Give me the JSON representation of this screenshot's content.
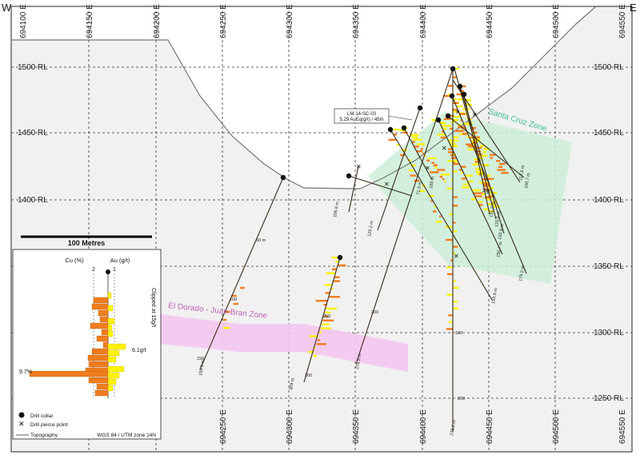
{
  "corners": {
    "left": "W",
    "right": "E"
  },
  "eastings": [
    "694100 E",
    "694150 E",
    "694200 E",
    "694250 E",
    "694300 E",
    "694350 E",
    "694400 E",
    "694450 E",
    "694500 E",
    "694550 E"
  ],
  "eastings_bottom": [
    "694250 E",
    "694300 E",
    "694350 E",
    "694400 E",
    "694450 E",
    "694500 E",
    "694550 E"
  ],
  "rl_labels": [
    "1500 RL",
    "1450 RL",
    "1400 RL",
    "1350 RL",
    "1300 RL",
    "1250 RL"
  ],
  "scale_bar": "100 Metres",
  "zones": {
    "santa_cruz": "Santa Cruz Zone",
    "el_dorado": "El Dorado - Juan Bran Zone"
  },
  "callout": {
    "hole": "LM-14-SC-03",
    "grade": "5.29 AuEq(g/t) / 45m"
  },
  "hole_ends": [
    "159.9 m",
    "309 m",
    "273.2 m",
    "276.5 m",
    "106.8 m",
    "125.2 m",
    "165 m",
    "159.9 m",
    "179.2 m",
    "150.7 m",
    "133.9 m",
    "125.6 m",
    "131.2 m",
    "112.6 m",
    "100.7 m",
    "71.3 m"
  ],
  "depth_ticks": [
    "50 m",
    "100",
    "150",
    "250",
    "300",
    "200",
    "100",
    "200",
    "250"
  ],
  "inset": {
    "cu_label": "Cu (%)",
    "au_label": "Au (g/t)",
    "cu_tick": "2",
    "au_tick": "1",
    "clipped": "Clipped at 15g/t",
    "au_value": "6.1g/t",
    "cu_value": "9.7%"
  },
  "legend": {
    "collar": "Drill collar",
    "pierce": "Drill pierce point",
    "topo": "Topography",
    "crs": "WGS 84 / UTM zone 14N"
  },
  "colors": {
    "santa_cruz_fill": "#cdeed9",
    "el_dorado_fill": "#f3c6ef",
    "cu_bar": "#f07d1e",
    "au_bar": "#fff200",
    "ground": "#f1f1f1"
  }
}
